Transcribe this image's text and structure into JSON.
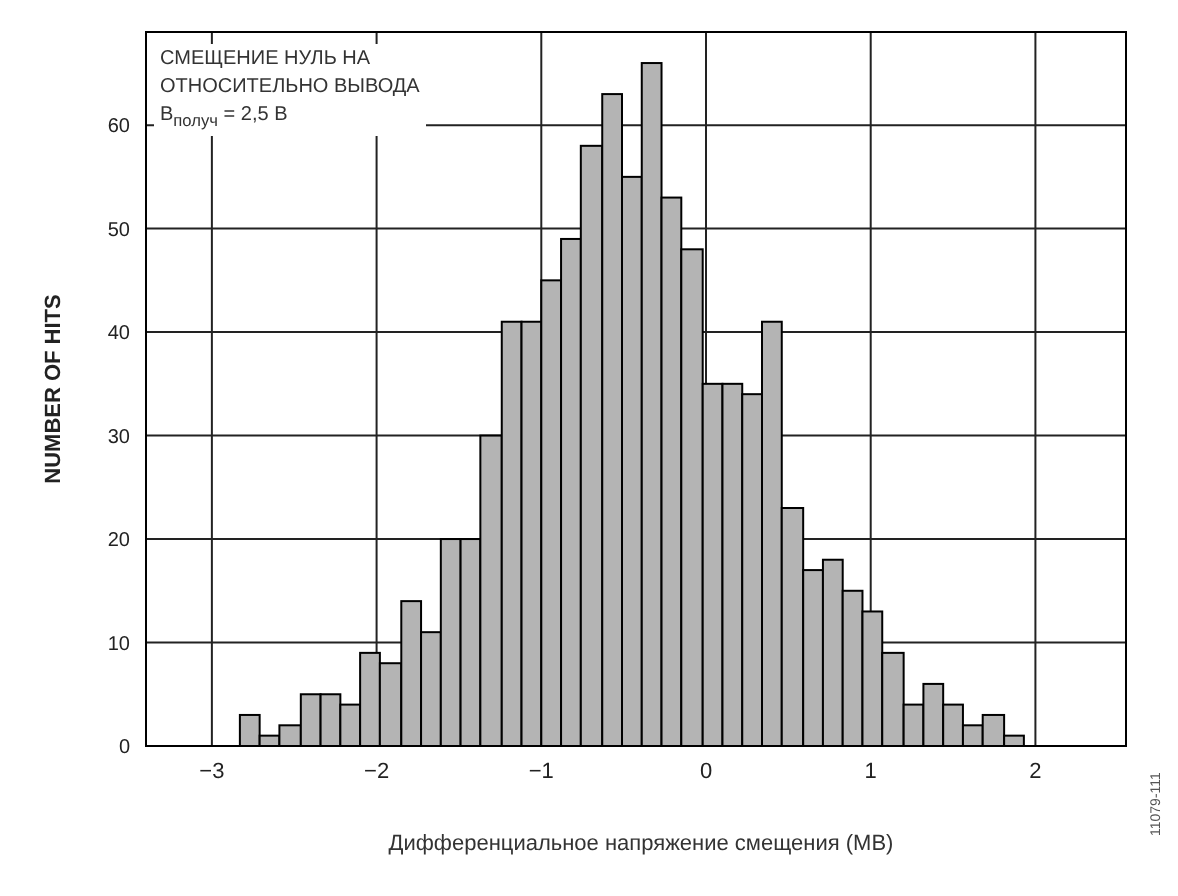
{
  "chart_data": {
    "type": "histogram",
    "xlabel": "Дифференциальное напряжение смещения (МВ)",
    "ylabel": "NUMBER OF HITS",
    "annotations": [
      "СМЕЩЕНИЕ НУЛЬ НА",
      "ОТНОСИТЕЛЬНО ВЫВОДА",
      "В$_{получ}$ = 2,5 В",
      "11079-111"
    ],
    "bins": [
      -2.83,
      -2.71,
      -2.59,
      -2.46,
      -2.34,
      -2.22,
      -2.1,
      -1.98,
      -1.85,
      -1.73,
      -1.61,
      -1.49,
      -1.37,
      -1.24,
      -1.12,
      -1.0,
      -0.88,
      -0.76,
      -0.63,
      -0.51,
      -0.39,
      -0.27,
      -0.15,
      -0.02,
      0.1,
      0.22,
      0.34,
      0.46,
      0.59,
      0.71,
      0.83,
      0.95,
      1.07,
      1.2,
      1.32,
      1.44,
      1.56,
      1.68,
      1.81,
      1.93
    ],
    "values": [
      3,
      1,
      2,
      5,
      5,
      4,
      9,
      8,
      14,
      11,
      20,
      20,
      30,
      41,
      41,
      45,
      49,
      58,
      63,
      55,
      66,
      53,
      48,
      35,
      35,
      34,
      41,
      23,
      17,
      18,
      15,
      13,
      9,
      4,
      6,
      4,
      2,
      3,
      1
    ],
    "color": "#b4b4b4",
    "xlim": [
      -3.4,
      2.55
    ],
    "xticks": [
      -3,
      -2,
      -1,
      0,
      1,
      2
    ],
    "ylim": [
      0,
      69
    ],
    "yticks": [
      0,
      10,
      20,
      30,
      40,
      50,
      60
    ],
    "grid": true
  }
}
